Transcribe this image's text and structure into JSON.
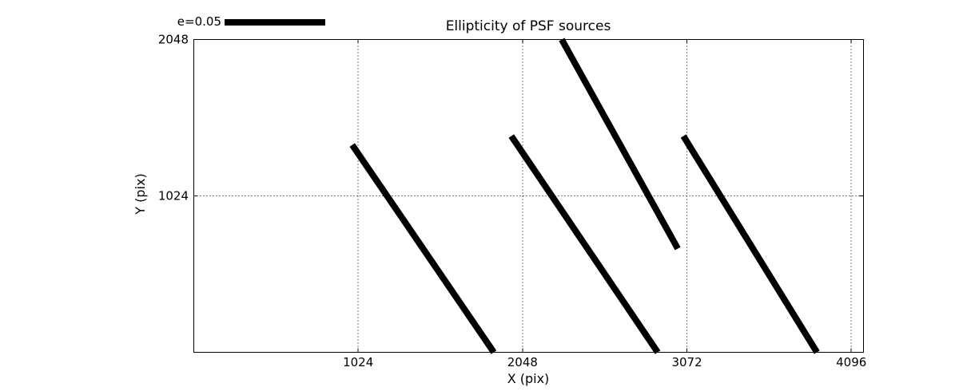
{
  "chart_data": {
    "type": "line",
    "subtype": "ellipticity-whisker-plot",
    "title": "Ellipticity of PSF sources",
    "xlabel": "X (pix)",
    "ylabel": "Y (pix)",
    "xlim": [
      0,
      4172
    ],
    "ylim": [
      0,
      2048
    ],
    "xticks": [
      1024,
      2048,
      3072,
      4096
    ],
    "yticks": [
      1024,
      2048
    ],
    "grid": true,
    "grid_style": "dotted",
    "legend": {
      "label": "e=0.05",
      "position": "top-left-outside",
      "swatch_color": "#000000"
    },
    "colors": {
      "stroke": "#000000",
      "background": "#ffffff"
    },
    "stroke_width_px": 8,
    "segments": [
      {
        "x1": 987,
        "y1": 1358,
        "x2": 1869,
        "y2": 0
      },
      {
        "x1": 1978,
        "y1": 1416,
        "x2": 2890,
        "y2": 0
      },
      {
        "x1": 2292,
        "y1": 2048,
        "x2": 3015,
        "y2": 679
      },
      {
        "x1": 3050,
        "y1": 1416,
        "x2": 3882,
        "y2": 0
      }
    ]
  }
}
